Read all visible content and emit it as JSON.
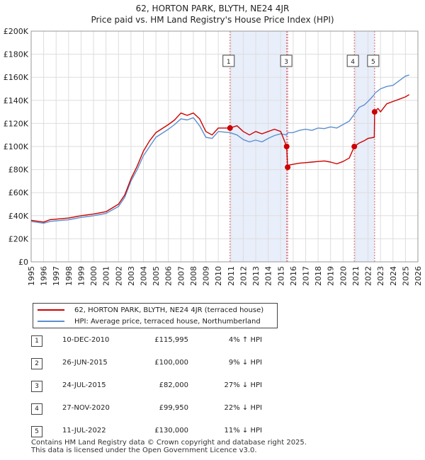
{
  "chart_data": {
    "type": "line",
    "title": "62, HORTON PARK, BLYTH, NE24 4JR",
    "subtitle": "Price paid vs. HM Land Registry's House Price Index (HPI)",
    "xlim": [
      1995,
      2026
    ],
    "ylim": [
      0,
      200000
    ],
    "y_ticks": [
      0,
      20000,
      40000,
      60000,
      80000,
      100000,
      120000,
      140000,
      160000,
      180000,
      200000
    ],
    "y_tick_labels": [
      "£0",
      "£20K",
      "£40K",
      "£60K",
      "£80K",
      "£100K",
      "£120K",
      "£140K",
      "£160K",
      "£180K",
      "£200K"
    ],
    "x_ticks": [
      1995,
      1996,
      1997,
      1998,
      1999,
      2000,
      2001,
      2002,
      2003,
      2004,
      2005,
      2006,
      2007,
      2008,
      2009,
      2010,
      2011,
      2012,
      2013,
      2014,
      2015,
      2016,
      2017,
      2018,
      2019,
      2020,
      2021,
      2022,
      2023,
      2024,
      2025,
      2026
    ],
    "grid": true,
    "series": [
      {
        "name": "62, HORTON PARK, BLYTH, NE24 4JR (terraced house)",
        "color": "#cc0000",
        "x": [
          1995.0,
          1996.0,
          1996.5,
          1997.0,
          1998.0,
          1999.0,
          2000.0,
          2001.0,
          2002.0,
          2002.5,
          2003.0,
          2003.5,
          2004.0,
          2004.5,
          2005.0,
          2006.0,
          2006.5,
          2007.0,
          2007.5,
          2008.0,
          2008.5,
          2009.0,
          2009.5,
          2010.0,
          2010.94,
          2011.5,
          2012.0,
          2012.5,
          2013.0,
          2013.5,
          2014.0,
          2014.5,
          2015.0,
          2015.48,
          2015.56,
          2015.7,
          2016.5,
          2017.0,
          2017.5,
          2018.0,
          2018.5,
          2019.0,
          2019.5,
          2020.0,
          2020.5,
          2020.9,
          2021.3,
          2021.7,
          2022.0,
          2022.5,
          2022.53,
          2022.8,
          2023.0,
          2023.5,
          2024.0,
          2024.5,
          2025.0,
          2025.3
        ],
        "y": [
          36000,
          34500,
          36500,
          37000,
          38000,
          40000,
          41500,
          43500,
          50000,
          58000,
          72000,
          83000,
          96000,
          105000,
          112000,
          119000,
          123000,
          129000,
          127000,
          129000,
          124000,
          113000,
          110000,
          116000,
          115995,
          118000,
          113000,
          110000,
          113000,
          111000,
          113000,
          115000,
          113000,
          100000,
          82000,
          84000,
          85500,
          86000,
          86500,
          87000,
          87500,
          86500,
          85000,
          87000,
          90000,
          99950,
          103000,
          105000,
          107000,
          108000,
          130000,
          133000,
          130000,
          137000,
          139000,
          141000,
          143000,
          145000
        ]
      },
      {
        "name": "HPI: Average price, terraced house, Northumberland",
        "color": "#5b8fcf",
        "x": [
          1995.0,
          1996.0,
          1996.5,
          1997.0,
          1998.0,
          1999.0,
          2000.0,
          2001.0,
          2002.0,
          2002.5,
          2003.0,
          2003.5,
          2004.0,
          2004.5,
          2005.0,
          2006.0,
          2006.5,
          2007.0,
          2007.5,
          2008.0,
          2008.5,
          2009.0,
          2009.5,
          2010.0,
          2010.94,
          2011.5,
          2012.0,
          2012.5,
          2013.0,
          2013.5,
          2014.0,
          2014.5,
          2015.0,
          2015.48,
          2015.56,
          2016.0,
          2016.5,
          2017.0,
          2017.5,
          2018.0,
          2018.5,
          2019.0,
          2019.5,
          2020.0,
          2020.5,
          2020.9,
          2021.3,
          2021.7,
          2022.0,
          2022.5,
          2022.53,
          2023.0,
          2023.5,
          2024.0,
          2024.5,
          2025.0,
          2025.3
        ],
        "y": [
          35000,
          33500,
          35000,
          35500,
          36500,
          38500,
          40000,
          42000,
          48000,
          56000,
          70000,
          80000,
          92000,
          100000,
          108000,
          115000,
          119000,
          124000,
          123000,
          125000,
          118000,
          108000,
          107000,
          113000,
          112000,
          110000,
          106000,
          104000,
          105500,
          104000,
          107000,
          109500,
          111000,
          110000,
          112000,
          112000,
          114000,
          115000,
          114000,
          116000,
          115500,
          117000,
          116000,
          119000,
          122000,
          128000,
          134000,
          136000,
          139000,
          145000,
          146000,
          150000,
          152000,
          153000,
          157000,
          161000,
          162000
        ]
      }
    ],
    "markers": [
      {
        "label": "1",
        "x": 2010.94,
        "y": 115995
      },
      {
        "label": "2",
        "x": 2015.48,
        "y": 100000
      },
      {
        "label": "3",
        "x": 2015.56,
        "y": 82000
      },
      {
        "label": "4",
        "x": 2020.9,
        "y": 99950
      },
      {
        "label": "5",
        "x": 2022.53,
        "y": 130000
      }
    ],
    "shaded_ranges": [
      [
        2010.94,
        2015.56
      ],
      [
        2020.9,
        2022.53
      ]
    ],
    "marker_label_boxes": [
      {
        "label": "1",
        "x": 2010.94
      },
      {
        "label": "3",
        "x": 2015.56
      },
      {
        "label": "4",
        "x": 2020.9
      },
      {
        "label": "5",
        "x": 2022.53
      }
    ],
    "colors": {
      "sales": "#cc0000",
      "hpi": "#5b8fcf",
      "shade": "#e8eefa",
      "vline": "#e06060",
      "grid": "#dddddd"
    }
  },
  "legend": {
    "sales_label": "62, HORTON PARK, BLYTH, NE24 4JR (terraced house)",
    "hpi_label": "HPI: Average price, terraced house, Northumberland"
  },
  "sales": [
    {
      "num": "1",
      "date": "10-DEC-2010",
      "price": "£115,995",
      "hpi": "4% ↑ HPI"
    },
    {
      "num": "2",
      "date": "26-JUN-2015",
      "price": "£100,000",
      "hpi": "9% ↓ HPI"
    },
    {
      "num": "3",
      "date": "24-JUL-2015",
      "price": "£82,000",
      "hpi": "27% ↓ HPI"
    },
    {
      "num": "4",
      "date": "27-NOV-2020",
      "price": "£99,950",
      "hpi": "22% ↓ HPI"
    },
    {
      "num": "5",
      "date": "11-JUL-2022",
      "price": "£130,000",
      "hpi": "11% ↓ HPI"
    }
  ],
  "footer": {
    "line1": "Contains HM Land Registry data © Crown copyright and database right 2025.",
    "line2": "This data is licensed under the Open Government Licence v3.0."
  }
}
